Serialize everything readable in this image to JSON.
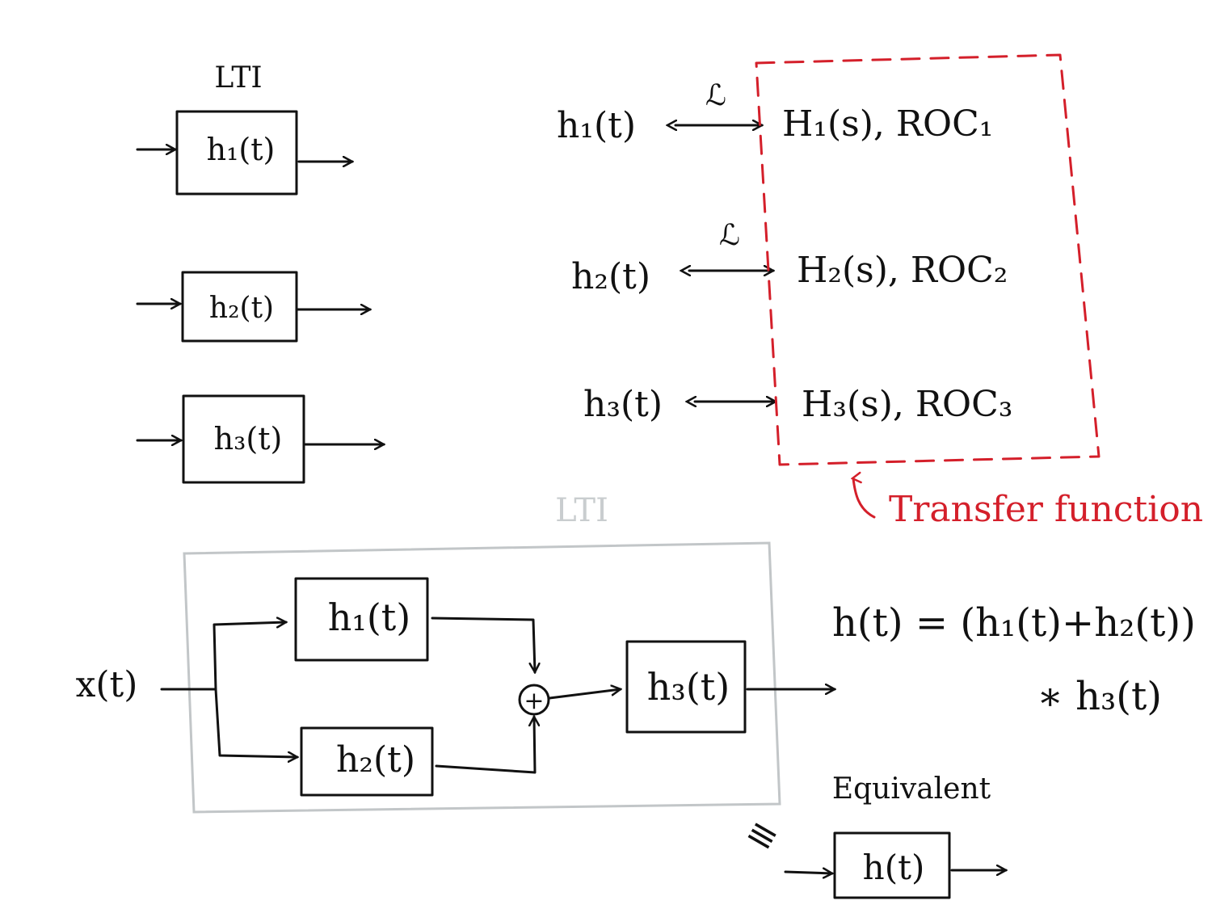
{
  "top_left": {
    "lti_label": "LTI",
    "blocks": [
      {
        "label": "h₁(t)"
      },
      {
        "label": "h₂(t)"
      },
      {
        "label": "h₃(t)"
      }
    ]
  },
  "laplace_pairs": {
    "operator": "ℒ",
    "rows": [
      {
        "time": "h₁(t)",
        "freq": "H₁(s), ROC₁"
      },
      {
        "time": "h₂(t)",
        "freq": "H₂(s), ROC₂"
      },
      {
        "time": "h₃(t)",
        "freq": "H₃(s), ROC₃"
      }
    ],
    "annotation": "Transfer function",
    "annotation_color": "#d41f2a"
  },
  "system": {
    "lti_label": "LTI",
    "input": "x(t)",
    "block1": "h₁(t)",
    "block2": "h₂(t)",
    "block3": "h₃(t)",
    "sum_symbol": "+",
    "frame_color": "#c2c6c8"
  },
  "equation": {
    "line1": "h(t) = (h₁(t)+h₂(t))",
    "line2": "∗ h₃(t)"
  },
  "equivalent": {
    "label": "Equivalent",
    "symbol": "≡",
    "block": "h(t)"
  }
}
